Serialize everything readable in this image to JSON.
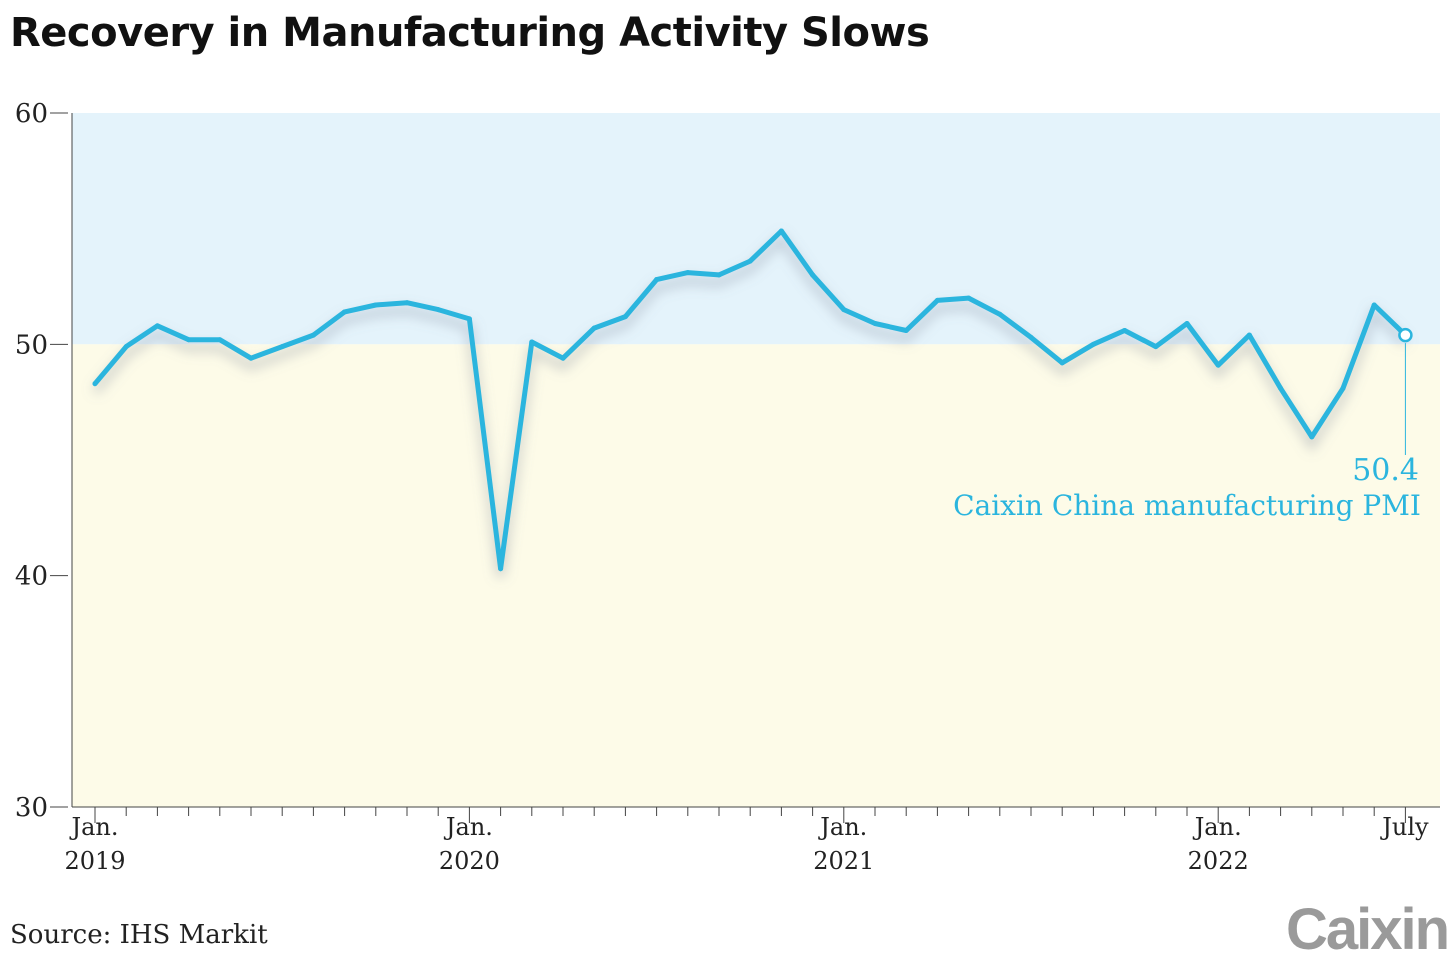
{
  "title": "Recovery in Manufacturing Activity Slows",
  "source": "Source: IHS Markit",
  "logo": "Caixin",
  "colors": {
    "line": "#2bb5de",
    "expansion_bg": "#e4f3fb",
    "contraction_bg": "#fdfbe8",
    "axis": "#444444"
  },
  "chart_data": {
    "type": "line",
    "title": "Recovery in Manufacturing Activity Slows",
    "xlabel": "",
    "ylabel": "",
    "ylim": [
      30,
      60
    ],
    "yticks": [
      30,
      40,
      50,
      60
    ],
    "threshold": 50,
    "grid": false,
    "x_tick_labels": [
      {
        "month": "2019-01",
        "label": [
          "Jan.",
          "2019"
        ]
      },
      {
        "month": "2020-01",
        "label": [
          "Jan.",
          "2020"
        ]
      },
      {
        "month": "2021-01",
        "label": [
          "Jan.",
          "2021"
        ]
      },
      {
        "month": "2022-01",
        "label": [
          "Jan.",
          "2022"
        ]
      },
      {
        "month": "2022-07",
        "label": [
          "July"
        ]
      }
    ],
    "x": [
      "2019-01",
      "2019-02",
      "2019-03",
      "2019-04",
      "2019-05",
      "2019-06",
      "2019-07",
      "2019-08",
      "2019-09",
      "2019-10",
      "2019-11",
      "2019-12",
      "2020-01",
      "2020-02",
      "2020-03",
      "2020-04",
      "2020-05",
      "2020-06",
      "2020-07",
      "2020-08",
      "2020-09",
      "2020-10",
      "2020-11",
      "2020-12",
      "2021-01",
      "2021-02",
      "2021-03",
      "2021-04",
      "2021-05",
      "2021-06",
      "2021-07",
      "2021-08",
      "2021-09",
      "2021-10",
      "2021-11",
      "2021-12",
      "2022-01",
      "2022-02",
      "2022-03",
      "2022-04",
      "2022-05",
      "2022-06",
      "2022-07"
    ],
    "series": [
      {
        "name": "Caixin China manufacturing PMI",
        "values": [
          48.3,
          49.9,
          50.8,
          50.2,
          50.2,
          49.4,
          49.9,
          50.4,
          51.4,
          51.7,
          51.8,
          51.5,
          51.1,
          40.3,
          50.1,
          49.4,
          50.7,
          51.2,
          52.8,
          53.1,
          53.0,
          53.6,
          54.9,
          53.0,
          51.5,
          50.9,
          50.6,
          51.9,
          52.0,
          51.3,
          50.3,
          49.2,
          50.0,
          50.6,
          49.9,
          50.9,
          49.1,
          50.4,
          48.1,
          46.0,
          48.1,
          51.7,
          50.4
        ]
      }
    ],
    "annotation": {
      "value": "50.4",
      "label": "Caixin China manufacturing PMI"
    }
  }
}
